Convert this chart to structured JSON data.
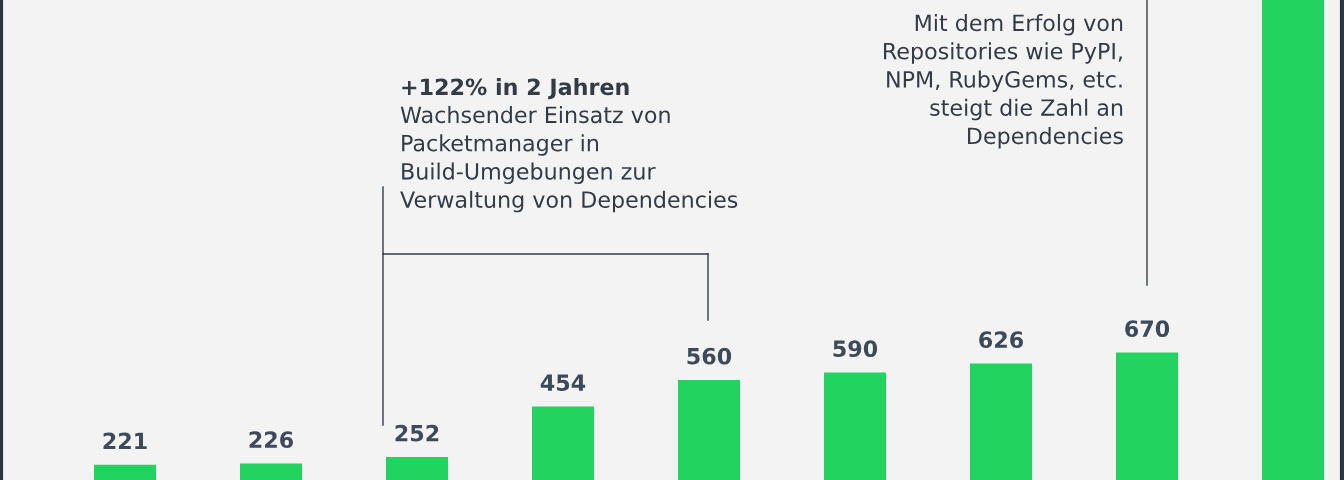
{
  "chart_data": {
    "type": "bar",
    "categories": [
      null,
      null,
      null,
      null,
      null,
      null,
      null,
      null,
      null
    ],
    "values": [
      221,
      226,
      252,
      454,
      560,
      590,
      626,
      670,
      2080
    ],
    "value_labels": [
      "221",
      "226",
      "252",
      "454",
      "560",
      "590",
      "626",
      "670",
      null
    ],
    "color": "#22d45f",
    "ylim": [
      0,
      2080
    ],
    "grid": false,
    "legend": false,
    "annotations": [
      "+122% in 2 Jahren",
      "Wachsender Einsatz von\nPacketmanager in\nBuild-Umgebungen zur\nVerwaltung von Dependencies",
      "Mit dem Erfolg von\nRepositories wie PyPI,\nNPM, RubyGems, etc.\nsteigt die Zahl an\nDependencies"
    ]
  }
}
